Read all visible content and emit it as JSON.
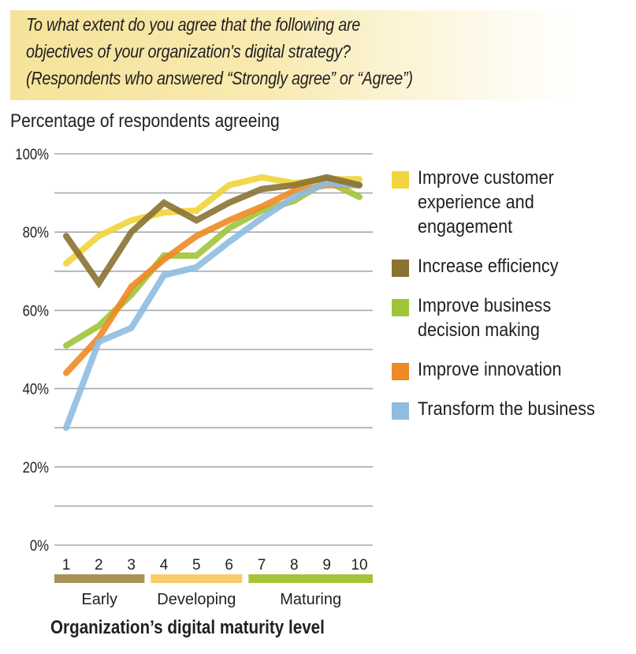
{
  "header": {
    "question_lines": [
      "To what extent do you agree that the following are",
      "objectives of your organization's digital strategy?",
      "(Respondents who answered “Strongly agree” or “Agree”)"
    ]
  },
  "chart_data": {
    "type": "line",
    "title": "To what extent do you agree that the following are objectives of your organization's digital strategy? (Respondents who answered “Strongly agree” or “Agree”)",
    "ylabel": "Percentage of respondents agreeing",
    "xlabel": "Organization’s digital maturity level",
    "x": [
      1,
      2,
      3,
      4,
      5,
      6,
      7,
      8,
      9,
      10
    ],
    "x_tick_labels": [
      "1",
      "2",
      "3",
      "4",
      "5",
      "6",
      "7",
      "8",
      "9",
      "10"
    ],
    "ylim": [
      0,
      100
    ],
    "y_ticks": [
      0,
      20,
      40,
      60,
      80,
      100
    ],
    "y_tick_labels": [
      "0%",
      "20%",
      "40%",
      "60%",
      "80%",
      "100%"
    ],
    "y_minor_gridlines": [
      10,
      30,
      50,
      70,
      90
    ],
    "grid": true,
    "legend_position": "right",
    "x_groups": [
      {
        "label": "Early",
        "from": 1,
        "to": 3,
        "color": "#a89257"
      },
      {
        "label": "Developing",
        "from": 4,
        "to": 6,
        "color": "#fccb6a"
      },
      {
        "label": "Maturing",
        "from": 7,
        "to": 10,
        "color": "#a6c43a"
      }
    ],
    "series": [
      {
        "name": "Improve customer experience and engagement",
        "legend_lines": [
          "Improve customer",
          "experience and",
          "engagement"
        ],
        "color": "#f2d43c",
        "values": [
          72,
          79,
          83,
          85,
          85.5,
          92,
          94,
          92.5,
          93.5,
          93.5
        ]
      },
      {
        "name": "Improve business decision making",
        "legend_lines": [
          "Improve business",
          "decision making"
        ],
        "color": "#9ec53a",
        "values": [
          51,
          56,
          64,
          74,
          74,
          81,
          85.5,
          88,
          93,
          89
        ]
      },
      {
        "name": "Improve innovation",
        "legend_lines": [
          "Improve innovation"
        ],
        "color": "#ee8a25",
        "values": [
          44,
          53,
          66,
          73,
          79,
          83,
          86.5,
          90.5,
          92,
          92
        ]
      },
      {
        "name": "Transform the business",
        "legend_lines": [
          "Transform the business"
        ],
        "color": "#8fbce0",
        "values": [
          30,
          52,
          55.5,
          69,
          71,
          77.5,
          83.5,
          89,
          92.5,
          92
        ]
      },
      {
        "name": "Increase efficiency",
        "legend_lines": [
          "Increase efficiency"
        ],
        "color": "#8a7232",
        "values": [
          79,
          67,
          80,
          87.5,
          83,
          87.5,
          91,
          92,
          94,
          92
        ]
      }
    ],
    "legend_order": [
      0,
      4,
      1,
      2,
      3
    ]
  }
}
